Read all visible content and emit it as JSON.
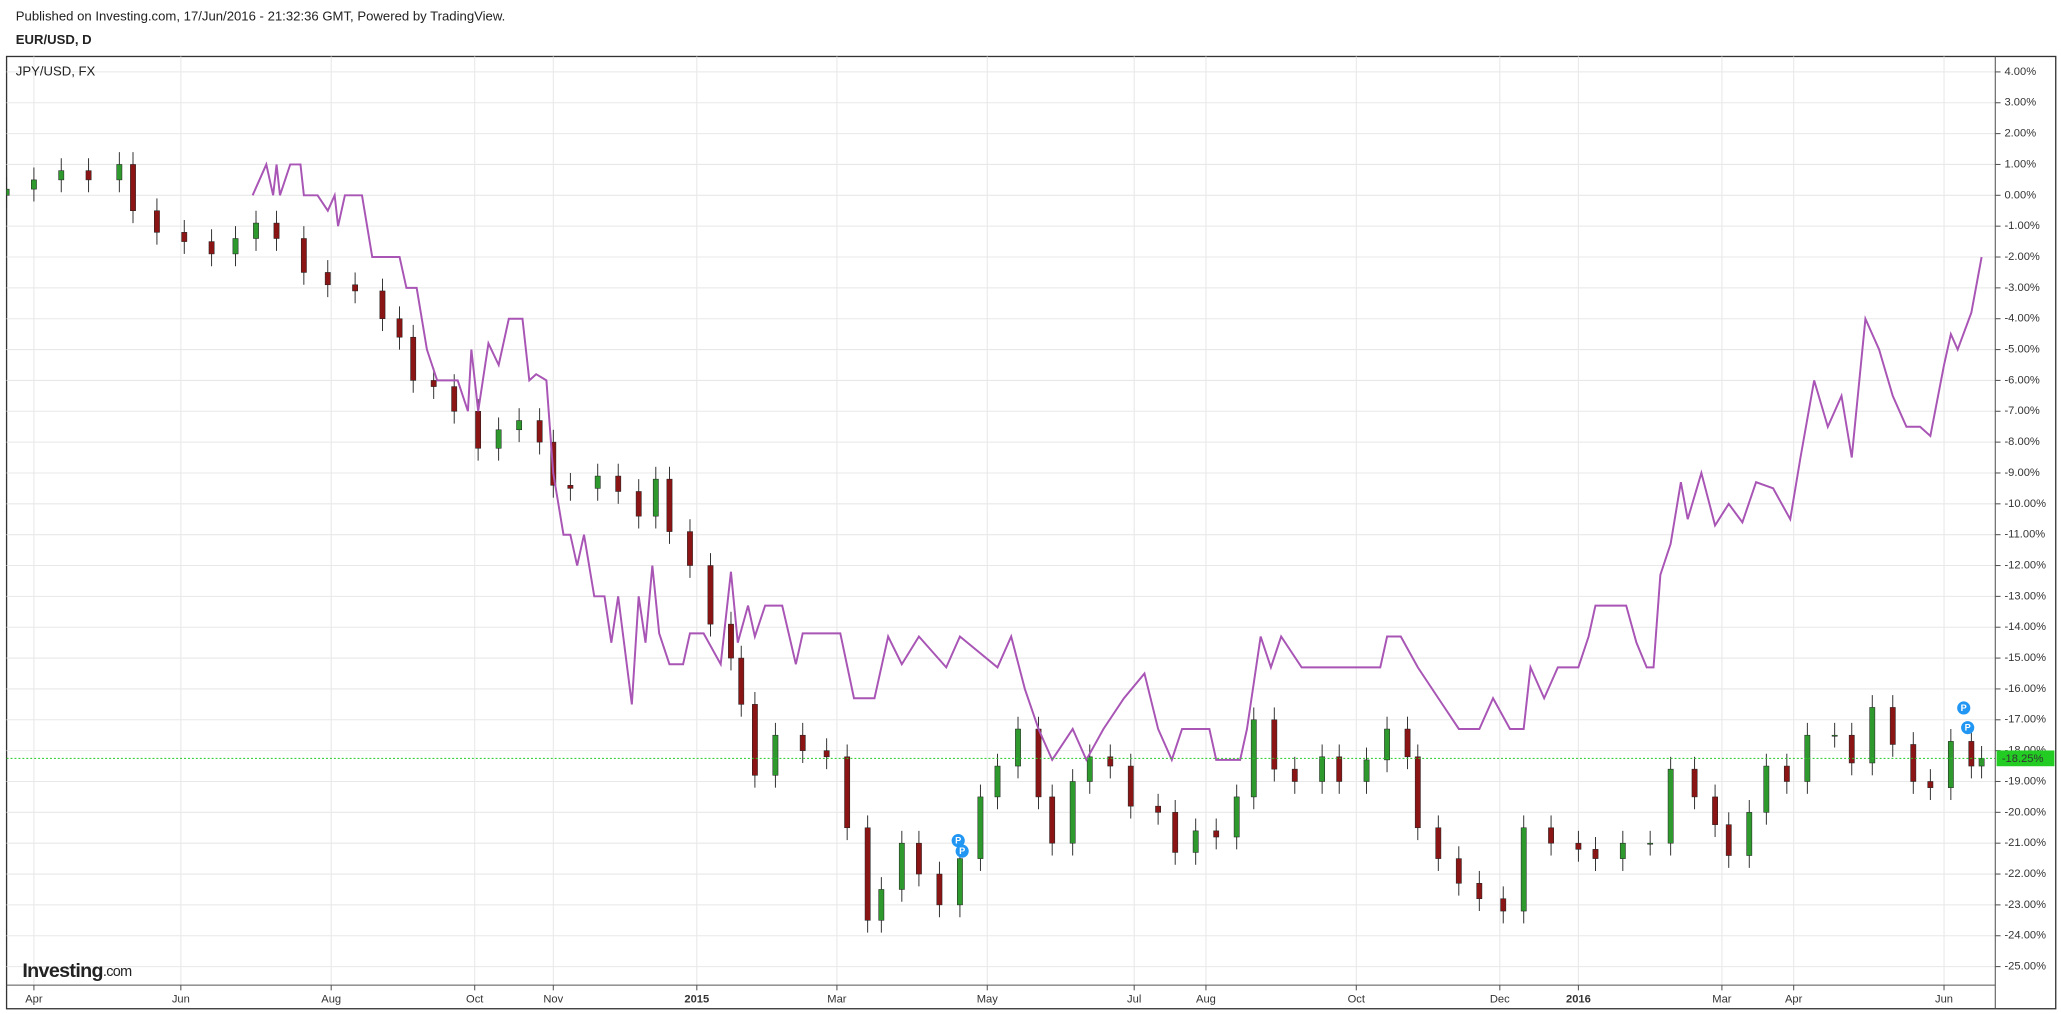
{
  "header": {
    "published": "Published on Investing.com, 17/Jun/2016 - 21:32:36 GMT, Powered by TradingView.",
    "symbol": "EUR/USD, D"
  },
  "logo": {
    "brand": "Investing",
    "suffix": ".com"
  },
  "event_markers": [
    "P",
    "P",
    "P",
    "P"
  ],
  "chart_data": {
    "type": "candlestick",
    "up_color": "#2e9a2e",
    "down_color": "#8b1414",
    "wick_color": "#222222",
    "last_label": "-18.25%",
    "last_color": "#22cc22",
    "x": [
      0,
      8,
      16,
      24,
      33,
      37,
      44,
      52,
      60,
      67,
      73,
      79,
      87,
      94,
      102,
      110,
      115,
      119,
      125,
      131,
      138,
      144,
      150,
      156,
      160,
      165,
      173,
      179,
      185,
      190,
      194,
      200,
      206,
      212,
      215,
      219,
      225,
      233,
      240,
      246,
      252,
      256,
      262,
      267,
      273,
      279,
      285,
      290,
      296,
      302,
      306,
      312,
      317,
      323,
      329,
      337,
      342,
      348,
      354,
      360,
      365,
      371,
      377,
      385,
      390,
      398,
      404,
      410,
      413,
      419,
      425,
      431,
      438,
      444,
      452,
      460,
      465,
      473,
      481,
      487,
      494,
      500,
      504,
      510,
      515,
      521,
      527,
      535,
      540,
      546,
      552,
      558,
      563,
      569,
      575,
      578
    ],
    "open": [
      0,
      0.2,
      0.5,
      0.8,
      0.5,
      1.0,
      -0.5,
      -1.2,
      -1.5,
      -1.9,
      -1.4,
      -0.9,
      -1.4,
      -2.5,
      -2.9,
      -3.1,
      -4.0,
      -4.6,
      -6.0,
      -6.2,
      -7.0,
      -8.2,
      -7.6,
      -7.3,
      -8.0,
      -9.4,
      -9.5,
      -9.1,
      -9.6,
      -10.4,
      -9.2,
      -10.9,
      -12.0,
      -13.9,
      -15.0,
      -16.5,
      -18.8,
      -17.5,
      -18.0,
      -18.2,
      -20.5,
      -23.5,
      -22.5,
      -21.0,
      -22.0,
      -23.0,
      -21.5,
      -19.5,
      -18.5,
      -17.3,
      -19.5,
      -21.0,
      -19.0,
      -18.2,
      -18.5,
      -19.8,
      -20.0,
      -21.3,
      -20.6,
      -20.8,
      -19.5,
      -17.0,
      -18.6,
      -19.0,
      -18.2,
      -19.0,
      -18.3,
      -17.3,
      -18.2,
      -20.5,
      -21.5,
      -22.3,
      -22.8,
      -23.2,
      -20.5,
      -21.0,
      -21.2,
      -21.5,
      -21.0,
      -21.0,
      -18.6,
      -19.5,
      -20.4,
      -21.4,
      -20.0,
      -18.5,
      -19.0,
      -17.5,
      -17.5,
      -18.4,
      -16.6,
      -17.8,
      -19.0,
      -19.2,
      -17.7,
      -18.5
    ],
    "high": [
      0.6,
      0.9,
      1.2,
      1.2,
      1.4,
      1.4,
      -0.1,
      -0.8,
      -1.1,
      -1.0,
      -0.5,
      -0.5,
      -1.0,
      -2.1,
      -2.5,
      -2.7,
      -3.6,
      -4.2,
      -5.6,
      -5.8,
      -6.6,
      -7.2,
      -6.9,
      -6.9,
      -7.6,
      -9.0,
      -8.7,
      -8.7,
      -9.2,
      -8.8,
      -8.8,
      -10.5,
      -11.6,
      -13.5,
      -14.6,
      -16.1,
      -17.1,
      -17.1,
      -17.6,
      -17.8,
      -20.1,
      -22.1,
      -20.6,
      -20.6,
      -21.6,
      -21.1,
      -19.1,
      -18.1,
      -16.9,
      -16.9,
      -19.1,
      -18.6,
      -17.8,
      -17.8,
      -18.1,
      -19.4,
      -19.6,
      -20.2,
      -20.2,
      -19.1,
      -16.6,
      -16.6,
      -18.2,
      -17.8,
      -17.8,
      -17.9,
      -16.9,
      -16.9,
      -17.8,
      -20.1,
      -21.1,
      -21.9,
      -22.4,
      -20.1,
      -20.1,
      -20.6,
      -20.8,
      -20.6,
      -20.6,
      -18.2,
      -18.2,
      -19.1,
      -20.0,
      -19.6,
      -18.1,
      -18.1,
      -17.1,
      -17.1,
      -17.1,
      -16.2,
      -16.2,
      -17.4,
      -18.6,
      -17.3,
      -17.3,
      -17.85
    ],
    "low": [
      -0.4,
      -0.2,
      0.1,
      0.1,
      0.1,
      -0.9,
      -1.6,
      -1.9,
      -2.3,
      -2.3,
      -1.8,
      -1.8,
      -2.9,
      -3.3,
      -3.5,
      -4.4,
      -5.0,
      -6.4,
      -6.6,
      -7.4,
      -8.6,
      -8.6,
      -8.0,
      -8.4,
      -9.8,
      -9.9,
      -9.9,
      -10.0,
      -10.8,
      -10.8,
      -11.3,
      -12.4,
      -14.3,
      -15.4,
      -16.9,
      -19.2,
      -19.2,
      -18.4,
      -18.6,
      -20.9,
      -23.9,
      -23.9,
      -22.9,
      -22.4,
      -23.4,
      -23.4,
      -21.9,
      -19.9,
      -18.9,
      -19.9,
      -21.4,
      -21.4,
      -19.4,
      -18.9,
      -20.2,
      -20.4,
      -21.7,
      -21.7,
      -21.2,
      -21.2,
      -19.9,
      -19.0,
      -19.4,
      -19.4,
      -19.4,
      -19.4,
      -18.7,
      -18.6,
      -20.9,
      -21.9,
      -22.7,
      -23.2,
      -23.6,
      -23.6,
      -21.4,
      -21.6,
      -21.9,
      -21.9,
      -21.4,
      -21.4,
      -19.9,
      -20.8,
      -21.8,
      -21.8,
      -20.4,
      -19.4,
      -19.4,
      -17.9,
      -18.8,
      -18.8,
      -18.2,
      -19.4,
      -19.6,
      -19.6,
      -18.9,
      -18.9
    ],
    "close": [
      0.2,
      0.5,
      0.8,
      0.5,
      1.0,
      -0.5,
      -1.2,
      -1.5,
      -1.9,
      -1.4,
      -0.9,
      -1.4,
      -2.5,
      -2.9,
      -3.1,
      -4.0,
      -4.6,
      -6.0,
      -6.2,
      -7.0,
      -8.2,
      -7.6,
      -7.3,
      -8.0,
      -9.4,
      -9.5,
      -9.1,
      -9.6,
      -10.4,
      -9.2,
      -10.9,
      -12.0,
      -13.9,
      -15.0,
      -16.5,
      -18.8,
      -17.5,
      -18.0,
      -18.2,
      -20.5,
      -23.5,
      -22.5,
      -21.0,
      -22.0,
      -23.0,
      -21.5,
      -19.5,
      -18.5,
      -17.3,
      -19.5,
      -21.0,
      -19.0,
      -18.2,
      -18.5,
      -19.8,
      -20.0,
      -21.3,
      -20.6,
      -20.8,
      -19.5,
      -17.0,
      -18.6,
      -19.0,
      -18.2,
      -19.0,
      -18.3,
      -17.3,
      -18.2,
      -20.5,
      -21.5,
      -22.3,
      -22.8,
      -23.2,
      -20.5,
      -21.0,
      -21.2,
      -21.5,
      -21.0,
      -21.0,
      -18.6,
      -19.5,
      -20.4,
      -21.4,
      -20.0,
      -18.5,
      -19.0,
      -17.5,
      -17.5,
      -18.4,
      -16.6,
      -17.8,
      -19.0,
      -19.2,
      -17.7,
      -18.5,
      -18.25
    ],
    "overlay": {
      "type": "line",
      "name": "JPY/USD, FX",
      "color": "#a855b5",
      "x": [
        72,
        76,
        78,
        79,
        80,
        83,
        86,
        87,
        91,
        94,
        96,
        97,
        99,
        104,
        107,
        115,
        117,
        120,
        123,
        126,
        132,
        135,
        136,
        138,
        141,
        144,
        147,
        151,
        153,
        155,
        158,
        160,
        163,
        165,
        167,
        169,
        172,
        175,
        177,
        179,
        183,
        185,
        187,
        189,
        191,
        194,
        198,
        200,
        204,
        209,
        212,
        214,
        217,
        219,
        222,
        227,
        231,
        233,
        244,
        248,
        254,
        258,
        262,
        267,
        275,
        279,
        290,
        294,
        298,
        302,
        306,
        312,
        316,
        321,
        327,
        333,
        337,
        341,
        344,
        352,
        354,
        361,
        363,
        367,
        370,
        373,
        379,
        402,
        404,
        408,
        413,
        419,
        425,
        431,
        435,
        440,
        444,
        446,
        450,
        454,
        460,
        463,
        465,
        474,
        477,
        480,
        482,
        484,
        487,
        490,
        492,
        496,
        500,
        504,
        508,
        512,
        517,
        522,
        525,
        529,
        533,
        537,
        540,
        544,
        548,
        552,
        556,
        560,
        563,
        567,
        569,
        571,
        575,
        578
      ],
      "values": [
        0.0,
        1.0,
        0.0,
        1.0,
        0.0,
        1.0,
        1.0,
        0.0,
        0.0,
        -0.5,
        0.0,
        -1.0,
        0.0,
        0.0,
        -2.0,
        -2.0,
        -3.0,
        -3.0,
        -5.0,
        -6.0,
        -6.0,
        -7.0,
        -5.0,
        -7.0,
        -4.8,
        -5.5,
        -4.0,
        -4.0,
        -6.0,
        -5.8,
        -6.0,
        -9.0,
        -11.0,
        -11.0,
        -12.0,
        -11.0,
        -13.0,
        -13.0,
        -14.5,
        -13.0,
        -16.5,
        -13.0,
        -14.5,
        -12.0,
        -14.2,
        -15.2,
        -15.2,
        -14.2,
        -14.2,
        -15.2,
        -12.2,
        -14.5,
        -13.3,
        -14.3,
        -13.3,
        -13.3,
        -15.2,
        -14.2,
        -14.2,
        -16.3,
        -16.3,
        -14.3,
        -15.2,
        -14.3,
        -15.3,
        -14.3,
        -15.3,
        -14.3,
        -16.0,
        -17.3,
        -18.3,
        -17.3,
        -18.3,
        -17.3,
        -16.3,
        -15.5,
        -17.3,
        -18.3,
        -17.3,
        -17.3,
        -18.3,
        -18.3,
        -17.3,
        -14.3,
        -15.3,
        -14.3,
        -15.3,
        -15.3,
        -14.3,
        -14.3,
        -15.3,
        -16.3,
        -17.3,
        -17.3,
        -16.3,
        -17.3,
        -17.3,
        -15.3,
        -16.3,
        -15.3,
        -15.3,
        -14.3,
        -13.3,
        -13.3,
        -14.5,
        -15.3,
        -15.3,
        -12.3,
        -11.3,
        -9.3,
        -10.5,
        -9.0,
        -10.7,
        -10.0,
        -10.6,
        -9.3,
        -9.5,
        -10.5,
        -8.5,
        -6.0,
        -7.5,
        -6.5,
        -8.5,
        -4.0,
        -5.0,
        -6.5,
        -7.5,
        -7.5,
        -7.8,
        -5.5,
        -4.5,
        -5.0,
        -3.8,
        -2.0
      ]
    },
    "xlim": [
      0,
      582
    ],
    "ylim": [
      -25.6,
      4.5
    ],
    "grid": true,
    "xticks": [
      {
        "value": 8,
        "label": "Apr"
      },
      {
        "value": 51,
        "label": "Jun"
      },
      {
        "value": 95,
        "label": "Aug"
      },
      {
        "value": 137,
        "label": "Oct"
      },
      {
        "value": 160,
        "label": "Nov"
      },
      {
        "value": 202,
        "label": "2015"
      },
      {
        "value": 243,
        "label": "Mar"
      },
      {
        "value": 287,
        "label": "May"
      },
      {
        "value": 330,
        "label": "Jul"
      },
      {
        "value": 351,
        "label": "Aug"
      },
      {
        "value": 395,
        "label": "Oct"
      },
      {
        "value": 437,
        "label": "Dec"
      },
      {
        "value": 460,
        "label": "2016"
      },
      {
        "value": 502,
        "label": "Mar"
      },
      {
        "value": 523,
        "label": "Apr"
      },
      {
        "value": 567,
        "label": "Jun"
      }
    ],
    "yticks": [
      {
        "value": 4,
        "label": "4.00%"
      },
      {
        "value": 3,
        "label": "3.00%"
      },
      {
        "value": 2,
        "label": "2.00%"
      },
      {
        "value": 1,
        "label": "1.00%"
      },
      {
        "value": 0,
        "label": "0.00%"
      },
      {
        "value": -1,
        "label": "-1.00%"
      },
      {
        "value": -2,
        "label": "-2.00%"
      },
      {
        "value": -3,
        "label": "-3.00%"
      },
      {
        "value": -4,
        "label": "-4.00%"
      },
      {
        "value": -5,
        "label": "-5.00%"
      },
      {
        "value": -6,
        "label": "-6.00%"
      },
      {
        "value": -7,
        "label": "-7.00%"
      },
      {
        "value": -8,
        "label": "-8.00%"
      },
      {
        "value": -9,
        "label": "-9.00%"
      },
      {
        "value": -10,
        "label": "-10.00%"
      },
      {
        "value": -11,
        "label": "-11.00%"
      },
      {
        "value": -12,
        "label": "-12.00%"
      },
      {
        "value": -13,
        "label": "-13.00%"
      },
      {
        "value": -14,
        "label": "-14.00%"
      },
      {
        "value": -15,
        "label": "-15.00%"
      },
      {
        "value": -16,
        "label": "-16.00%"
      },
      {
        "value": -17,
        "label": "-17.00%"
      },
      {
        "value": -18,
        "label": "-18.00%"
      },
      {
        "value": -19,
        "label": "-19.00%"
      },
      {
        "value": -20,
        "label": "-20.00%"
      },
      {
        "value": -21,
        "label": "-21.00%"
      },
      {
        "value": -22,
        "label": "-22.00%"
      },
      {
        "value": -23,
        "label": "-23.00%"
      },
      {
        "value": -24,
        "label": "-24.00%"
      },
      {
        "value": -25,
        "label": "-25.00%"
      }
    ]
  }
}
